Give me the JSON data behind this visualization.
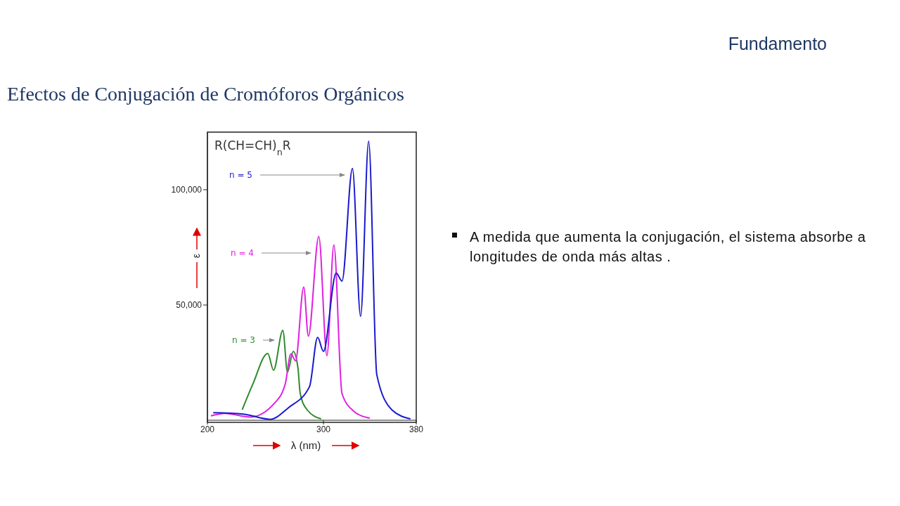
{
  "chart_data": {
    "type": "line",
    "title": "Efectos de Conjugación de Cromóforos Orgánicos",
    "xlabel": "λ (nm)",
    "ylabel": "ε",
    "annotations": [
      "Fundamento",
      "R(CH=CH)$_{n}$R",
      "A medida que aumenta la conjugación, el sistema absorbe a longitudes de onda más altas ."
    ],
    "xlim": [
      200,
      380
    ],
    "ylim": [
      0,
      125000
    ],
    "xticks": [
      200,
      300,
      380
    ],
    "yticks": [
      {
        "value": 50000,
        "label": "50,000"
      },
      {
        "value": 100000,
        "label": "100,000"
      }
    ],
    "marker": "none",
    "line_style": "solid",
    "series": [
      {
        "name": "n = 3",
        "color": "#2e8b2e",
        "x": [
          230,
          239,
          252,
          257,
          265,
          269,
          274,
          278,
          280,
          286,
          298
        ],
        "values": [
          4600,
          15500,
          29000,
          21700,
          39000,
          20900,
          29900,
          22800,
          11600,
          4500,
          600
        ]
      },
      {
        "name": "n = 4",
        "color": "#e020e0",
        "x": [
          203,
          215,
          237,
          258,
          267,
          272,
          276,
          283,
          287,
          296,
          303,
          309,
          316,
          326,
          340
        ],
        "values": [
          1900,
          3000,
          1400,
          7500,
          15600,
          28800,
          25800,
          57800,
          36500,
          79700,
          28000,
          76100,
          11600,
          4000,
          900
        ]
      },
      {
        "name": "n = 5",
        "color": "#1a1acc",
        "x": [
          205,
          231,
          254,
          270,
          288,
          295,
          300,
          311,
          316,
          325,
          332,
          339,
          346,
          359,
          375
        ],
        "values": [
          3300,
          2700,
          400,
          5500,
          14600,
          36000,
          29900,
          63900,
          60400,
          109200,
          45100,
          121000,
          19700,
          4500,
          600
        ]
      }
    ]
  }
}
